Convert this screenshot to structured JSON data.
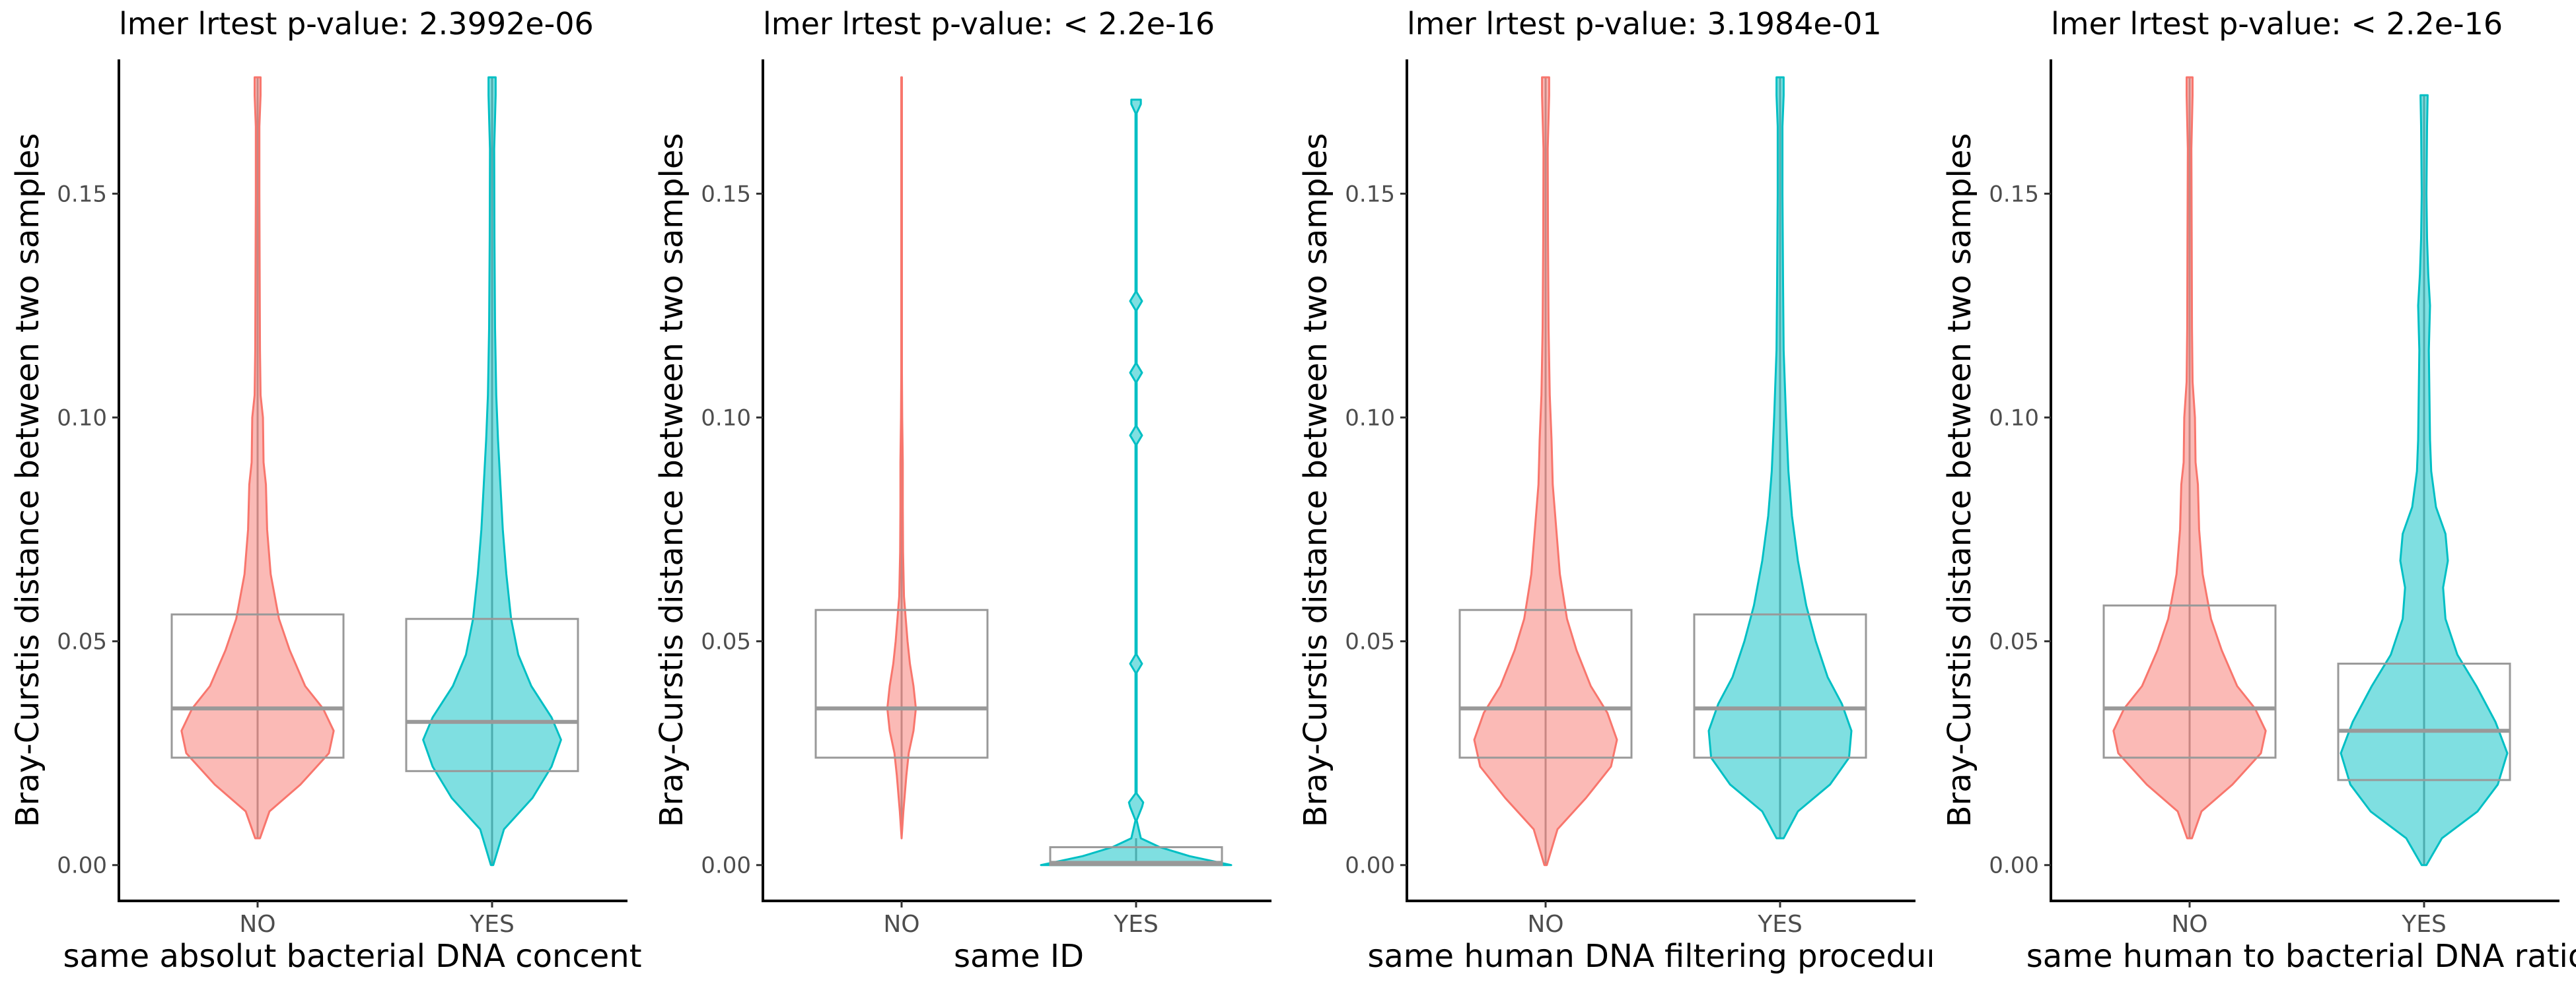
{
  "colors": {
    "NO": "#F8766D",
    "YES": "#00BFC4",
    "box": "#999999"
  },
  "chart_data": [
    {
      "type": "violin+box",
      "title": "lmer lrtest p-value: 2.3992e-06",
      "xlabel": "same absolut bacterial DNA concentrat",
      "ylabel": "Bray-Curstis distance between two samples",
      "categories": [
        "NO",
        "YES"
      ],
      "yticks": [
        "0.00",
        "0.05",
        "0.10",
        "0.15"
      ],
      "ylim": [
        -0.008,
        0.18
      ],
      "grid": false,
      "box": [
        {
          "group": "NO",
          "q1": 0.024,
          "median": 0.035,
          "q3": 0.056,
          "whisker_low": 0.006,
          "whisker_high": 0.176
        },
        {
          "group": "YES",
          "q1": 0.021,
          "median": 0.032,
          "q3": 0.055,
          "whisker_low": 0.0,
          "whisker_high": 0.176
        }
      ],
      "violins": [
        {
          "group": "NO",
          "min": 0.006,
          "max": 0.176,
          "profile": [
            [
              0.006,
              0.02
            ],
            [
              0.012,
              0.1
            ],
            [
              0.018,
              0.36
            ],
            [
              0.025,
              0.6
            ],
            [
              0.03,
              0.64
            ],
            [
              0.035,
              0.55
            ],
            [
              0.04,
              0.4
            ],
            [
              0.048,
              0.27
            ],
            [
              0.055,
              0.18
            ],
            [
              0.065,
              0.11
            ],
            [
              0.075,
              0.08
            ],
            [
              0.085,
              0.07
            ],
            [
              0.09,
              0.05
            ],
            [
              0.1,
              0.045
            ],
            [
              0.105,
              0.025
            ],
            [
              0.115,
              0.02
            ],
            [
              0.13,
              0.018
            ],
            [
              0.15,
              0.015
            ],
            [
              0.165,
              0.015
            ],
            [
              0.172,
              0.025
            ],
            [
              0.176,
              0.025
            ]
          ]
        },
        {
          "group": "YES",
          "min": 0.0,
          "max": 0.176,
          "profile": [
            [
              0.0,
              0.01
            ],
            [
              0.008,
              0.1
            ],
            [
              0.015,
              0.34
            ],
            [
              0.022,
              0.5
            ],
            [
              0.028,
              0.58
            ],
            [
              0.033,
              0.5
            ],
            [
              0.04,
              0.33
            ],
            [
              0.047,
              0.22
            ],
            [
              0.055,
              0.16
            ],
            [
              0.065,
              0.12
            ],
            [
              0.075,
              0.09
            ],
            [
              0.085,
              0.07
            ],
            [
              0.095,
              0.05
            ],
            [
              0.105,
              0.035
            ],
            [
              0.12,
              0.025
            ],
            [
              0.14,
              0.02
            ],
            [
              0.16,
              0.018
            ],
            [
              0.172,
              0.03
            ],
            [
              0.176,
              0.03
            ]
          ]
        }
      ]
    },
    {
      "type": "violin+box",
      "title": "lmer lrtest p-value: < 2.2e-16",
      "xlabel": "same ID",
      "ylabel": "Bray-Curstis distance between two samples",
      "categories": [
        "NO",
        "YES"
      ],
      "yticks": [
        "0.00",
        "0.05",
        "0.10",
        "0.15"
      ],
      "ylim": [
        -0.008,
        0.18
      ],
      "grid": false,
      "box": [
        {
          "group": "NO",
          "q1": 0.024,
          "median": 0.035,
          "q3": 0.057,
          "whisker_low": 0.006,
          "whisker_high": 0.176
        },
        {
          "group": "YES",
          "q1": 0.0,
          "median": 0.0005,
          "q3": 0.004,
          "whisker_low": 0.0,
          "whisker_high": 0.006
        }
      ],
      "violins": [
        {
          "group": "NO",
          "min": 0.006,
          "max": 0.176,
          "profile": [
            [
              0.006,
              0.0
            ],
            [
              0.012,
              0.015
            ],
            [
              0.02,
              0.04
            ],
            [
              0.025,
              0.06
            ],
            [
              0.03,
              0.1
            ],
            [
              0.035,
              0.12
            ],
            [
              0.04,
              0.1
            ],
            [
              0.045,
              0.07
            ],
            [
              0.05,
              0.05
            ],
            [
              0.055,
              0.035
            ],
            [
              0.06,
              0.02
            ],
            [
              0.07,
              0.012
            ],
            [
              0.08,
              0.01
            ],
            [
              0.09,
              0.01
            ],
            [
              0.1,
              0.005
            ],
            [
              0.11,
              0.003
            ],
            [
              0.176,
              0.003
            ]
          ]
        },
        {
          "group": "YES",
          "min": 0.0,
          "max": 0.171,
          "profile": [
            [
              0.0,
              0.8
            ],
            [
              0.002,
              0.45
            ],
            [
              0.004,
              0.2
            ],
            [
              0.006,
              0.04
            ],
            [
              0.01,
              0.005
            ],
            [
              0.013,
              0.05
            ],
            [
              0.014,
              0.06
            ],
            [
              0.016,
              0.005
            ],
            [
              0.043,
              0.005
            ],
            [
              0.045,
              0.05
            ],
            [
              0.047,
              0.005
            ],
            [
              0.094,
              0.005
            ],
            [
              0.096,
              0.05
            ],
            [
              0.098,
              0.005
            ],
            [
              0.108,
              0.005
            ],
            [
              0.11,
              0.05
            ],
            [
              0.112,
              0.005
            ],
            [
              0.124,
              0.005
            ],
            [
              0.126,
              0.05
            ],
            [
              0.128,
              0.005
            ],
            [
              0.168,
              0.005
            ],
            [
              0.17,
              0.04
            ],
            [
              0.171,
              0.04
            ]
          ]
        }
      ]
    },
    {
      "type": "violin+box",
      "title": "lmer lrtest p-value: 3.1984e-01",
      "xlabel": "same human DNA filtering procedure",
      "ylabel": "Bray-Curstis distance between two samples",
      "categories": [
        "NO",
        "YES"
      ],
      "yticks": [
        "0.00",
        "0.05",
        "0.10",
        "0.15"
      ],
      "ylim": [
        -0.008,
        0.18
      ],
      "grid": false,
      "box": [
        {
          "group": "NO",
          "q1": 0.024,
          "median": 0.035,
          "q3": 0.057,
          "whisker_low": 0.0,
          "whisker_high": 0.176
        },
        {
          "group": "YES",
          "q1": 0.024,
          "median": 0.035,
          "q3": 0.056,
          "whisker_low": 0.006,
          "whisker_high": 0.176
        }
      ],
      "violins": [
        {
          "group": "NO",
          "min": 0.0,
          "max": 0.176,
          "profile": [
            [
              0.0,
              0.01
            ],
            [
              0.008,
              0.1
            ],
            [
              0.015,
              0.34
            ],
            [
              0.022,
              0.55
            ],
            [
              0.028,
              0.6
            ],
            [
              0.034,
              0.52
            ],
            [
              0.04,
              0.38
            ],
            [
              0.048,
              0.26
            ],
            [
              0.055,
              0.18
            ],
            [
              0.065,
              0.12
            ],
            [
              0.075,
              0.09
            ],
            [
              0.085,
              0.06
            ],
            [
              0.095,
              0.05
            ],
            [
              0.105,
              0.035
            ],
            [
              0.12,
              0.025
            ],
            [
              0.14,
              0.02
            ],
            [
              0.16,
              0.018
            ],
            [
              0.172,
              0.03
            ],
            [
              0.176,
              0.03
            ]
          ]
        },
        {
          "group": "YES",
          "min": 0.006,
          "max": 0.176,
          "profile": [
            [
              0.006,
              0.03
            ],
            [
              0.012,
              0.15
            ],
            [
              0.018,
              0.42
            ],
            [
              0.024,
              0.58
            ],
            [
              0.03,
              0.6
            ],
            [
              0.036,
              0.52
            ],
            [
              0.042,
              0.4
            ],
            [
              0.05,
              0.3
            ],
            [
              0.058,
              0.22
            ],
            [
              0.068,
              0.15
            ],
            [
              0.078,
              0.1
            ],
            [
              0.088,
              0.07
            ],
            [
              0.1,
              0.05
            ],
            [
              0.115,
              0.03
            ],
            [
              0.13,
              0.025
            ],
            [
              0.15,
              0.02
            ],
            [
              0.165,
              0.02
            ],
            [
              0.172,
              0.03
            ],
            [
              0.176,
              0.03
            ]
          ]
        }
      ]
    },
    {
      "type": "violin+box",
      "title": "lmer lrtest p-value: < 2.2e-16",
      "xlabel": "same human to bacterial DNA ratio",
      "ylabel": "Bray-Curstis distance between two samples",
      "categories": [
        "NO",
        "YES"
      ],
      "yticks": [
        "0.00",
        "0.05",
        "0.10",
        "0.15"
      ],
      "ylim": [
        -0.008,
        0.18
      ],
      "grid": false,
      "box": [
        {
          "group": "NO",
          "q1": 0.024,
          "median": 0.035,
          "q3": 0.058,
          "whisker_low": 0.006,
          "whisker_high": 0.176
        },
        {
          "group": "YES",
          "q1": 0.019,
          "median": 0.03,
          "q3": 0.045,
          "whisker_low": 0.0,
          "whisker_high": 0.172
        }
      ],
      "violins": [
        {
          "group": "NO",
          "min": 0.006,
          "max": 0.176,
          "profile": [
            [
              0.006,
              0.02
            ],
            [
              0.012,
              0.1
            ],
            [
              0.018,
              0.36
            ],
            [
              0.025,
              0.6
            ],
            [
              0.03,
              0.64
            ],
            [
              0.035,
              0.55
            ],
            [
              0.04,
              0.4
            ],
            [
              0.048,
              0.27
            ],
            [
              0.055,
              0.18
            ],
            [
              0.065,
              0.11
            ],
            [
              0.075,
              0.08
            ],
            [
              0.085,
              0.07
            ],
            [
              0.09,
              0.05
            ],
            [
              0.1,
              0.045
            ],
            [
              0.108,
              0.025
            ],
            [
              0.12,
              0.02
            ],
            [
              0.14,
              0.018
            ],
            [
              0.16,
              0.015
            ],
            [
              0.172,
              0.025
            ],
            [
              0.176,
              0.025
            ]
          ]
        },
        {
          "group": "YES",
          "min": 0.0,
          "max": 0.172,
          "profile": [
            [
              0.0,
              0.02
            ],
            [
              0.006,
              0.15
            ],
            [
              0.012,
              0.45
            ],
            [
              0.018,
              0.62
            ],
            [
              0.025,
              0.7
            ],
            [
              0.032,
              0.6
            ],
            [
              0.04,
              0.44
            ],
            [
              0.047,
              0.28
            ],
            [
              0.055,
              0.18
            ],
            [
              0.062,
              0.16
            ],
            [
              0.068,
              0.2
            ],
            [
              0.074,
              0.18
            ],
            [
              0.08,
              0.1
            ],
            [
              0.088,
              0.06
            ],
            [
              0.095,
              0.05
            ],
            [
              0.105,
              0.045
            ],
            [
              0.115,
              0.04
            ],
            [
              0.125,
              0.05
            ],
            [
              0.132,
              0.035
            ],
            [
              0.14,
              0.025
            ],
            [
              0.15,
              0.02
            ],
            [
              0.165,
              0.025
            ],
            [
              0.172,
              0.03
            ]
          ]
        }
      ]
    }
  ]
}
